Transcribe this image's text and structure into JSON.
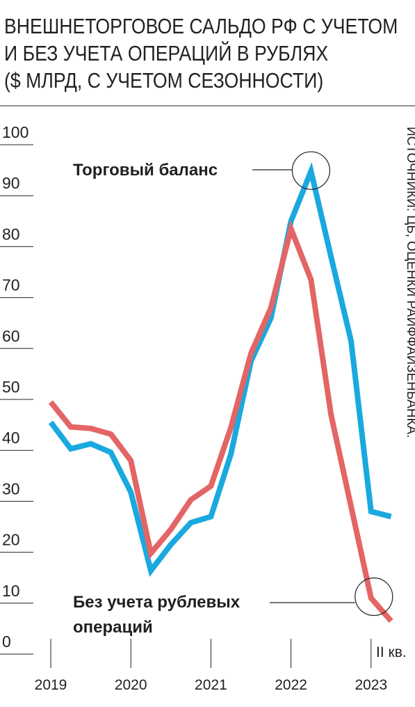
{
  "title_lines": [
    "ВНЕШНЕТОРГОВОЕ САЛЬДО РФ С УЧЕТОМ",
    "И БЕЗ УЧЕТА ОПЕРАЦИЙ В РУБЛЯХ",
    "($ МЛРД, С УЧЕТОМ СЕЗОННОСТИ)"
  ],
  "source": "ИСТОЧНИКИ: ЦБ, ОЦЕНКИ РАЙФФАЙЗЕНБАНКА.",
  "colors": {
    "trade_balance": "#1aa9df",
    "without_ruble": "#e36565",
    "grid": "#231f20",
    "text": "#231f20"
  },
  "chart_data": {
    "type": "line",
    "ylim": [
      0,
      100
    ],
    "yticks": [
      "0",
      "10",
      "20",
      "30",
      "40",
      "50",
      "60",
      "70",
      "80",
      "90",
      "100"
    ],
    "xticks": [
      "2019",
      "2020",
      "2021",
      "2022",
      "2023"
    ],
    "last_point_label": "II кв.",
    "x": [
      "2019 I",
      "2019 II",
      "2019 III",
      "2019 IV",
      "2020 I",
      "2020 II",
      "2020 III",
      "2020 IV",
      "2021 I",
      "2021 II",
      "2021 III",
      "2021 IV",
      "2022 I",
      "2022 II",
      "2022 III",
      "2022 IV",
      "2023 I",
      "2023 II"
    ],
    "series": [
      {
        "name": "Торговый баланс",
        "key": "trade_balance",
        "values": [
          45.5,
          40.3,
          41.3,
          39.6,
          31.8,
          16.4,
          21.5,
          25.8,
          27.0,
          39.3,
          57.5,
          66.0,
          85.0,
          94.8,
          78.0,
          61.5,
          28.0,
          27.0
        ]
      },
      {
        "name": "Без учета рублевых операций",
        "key": "without_ruble",
        "values": [
          49.5,
          44.6,
          44.3,
          43.2,
          38.0,
          19.8,
          24.5,
          30.3,
          33.0,
          44.5,
          59.0,
          68.0,
          83.5,
          73.5,
          47.0,
          29.0,
          11.0,
          6.5
        ]
      }
    ],
    "annotations": [
      {
        "series": "trade_balance",
        "text_lines": [
          "Торговый баланс"
        ]
      },
      {
        "series": "without_ruble",
        "text_lines": [
          "Без учета рублевых",
          "операций"
        ]
      }
    ]
  }
}
